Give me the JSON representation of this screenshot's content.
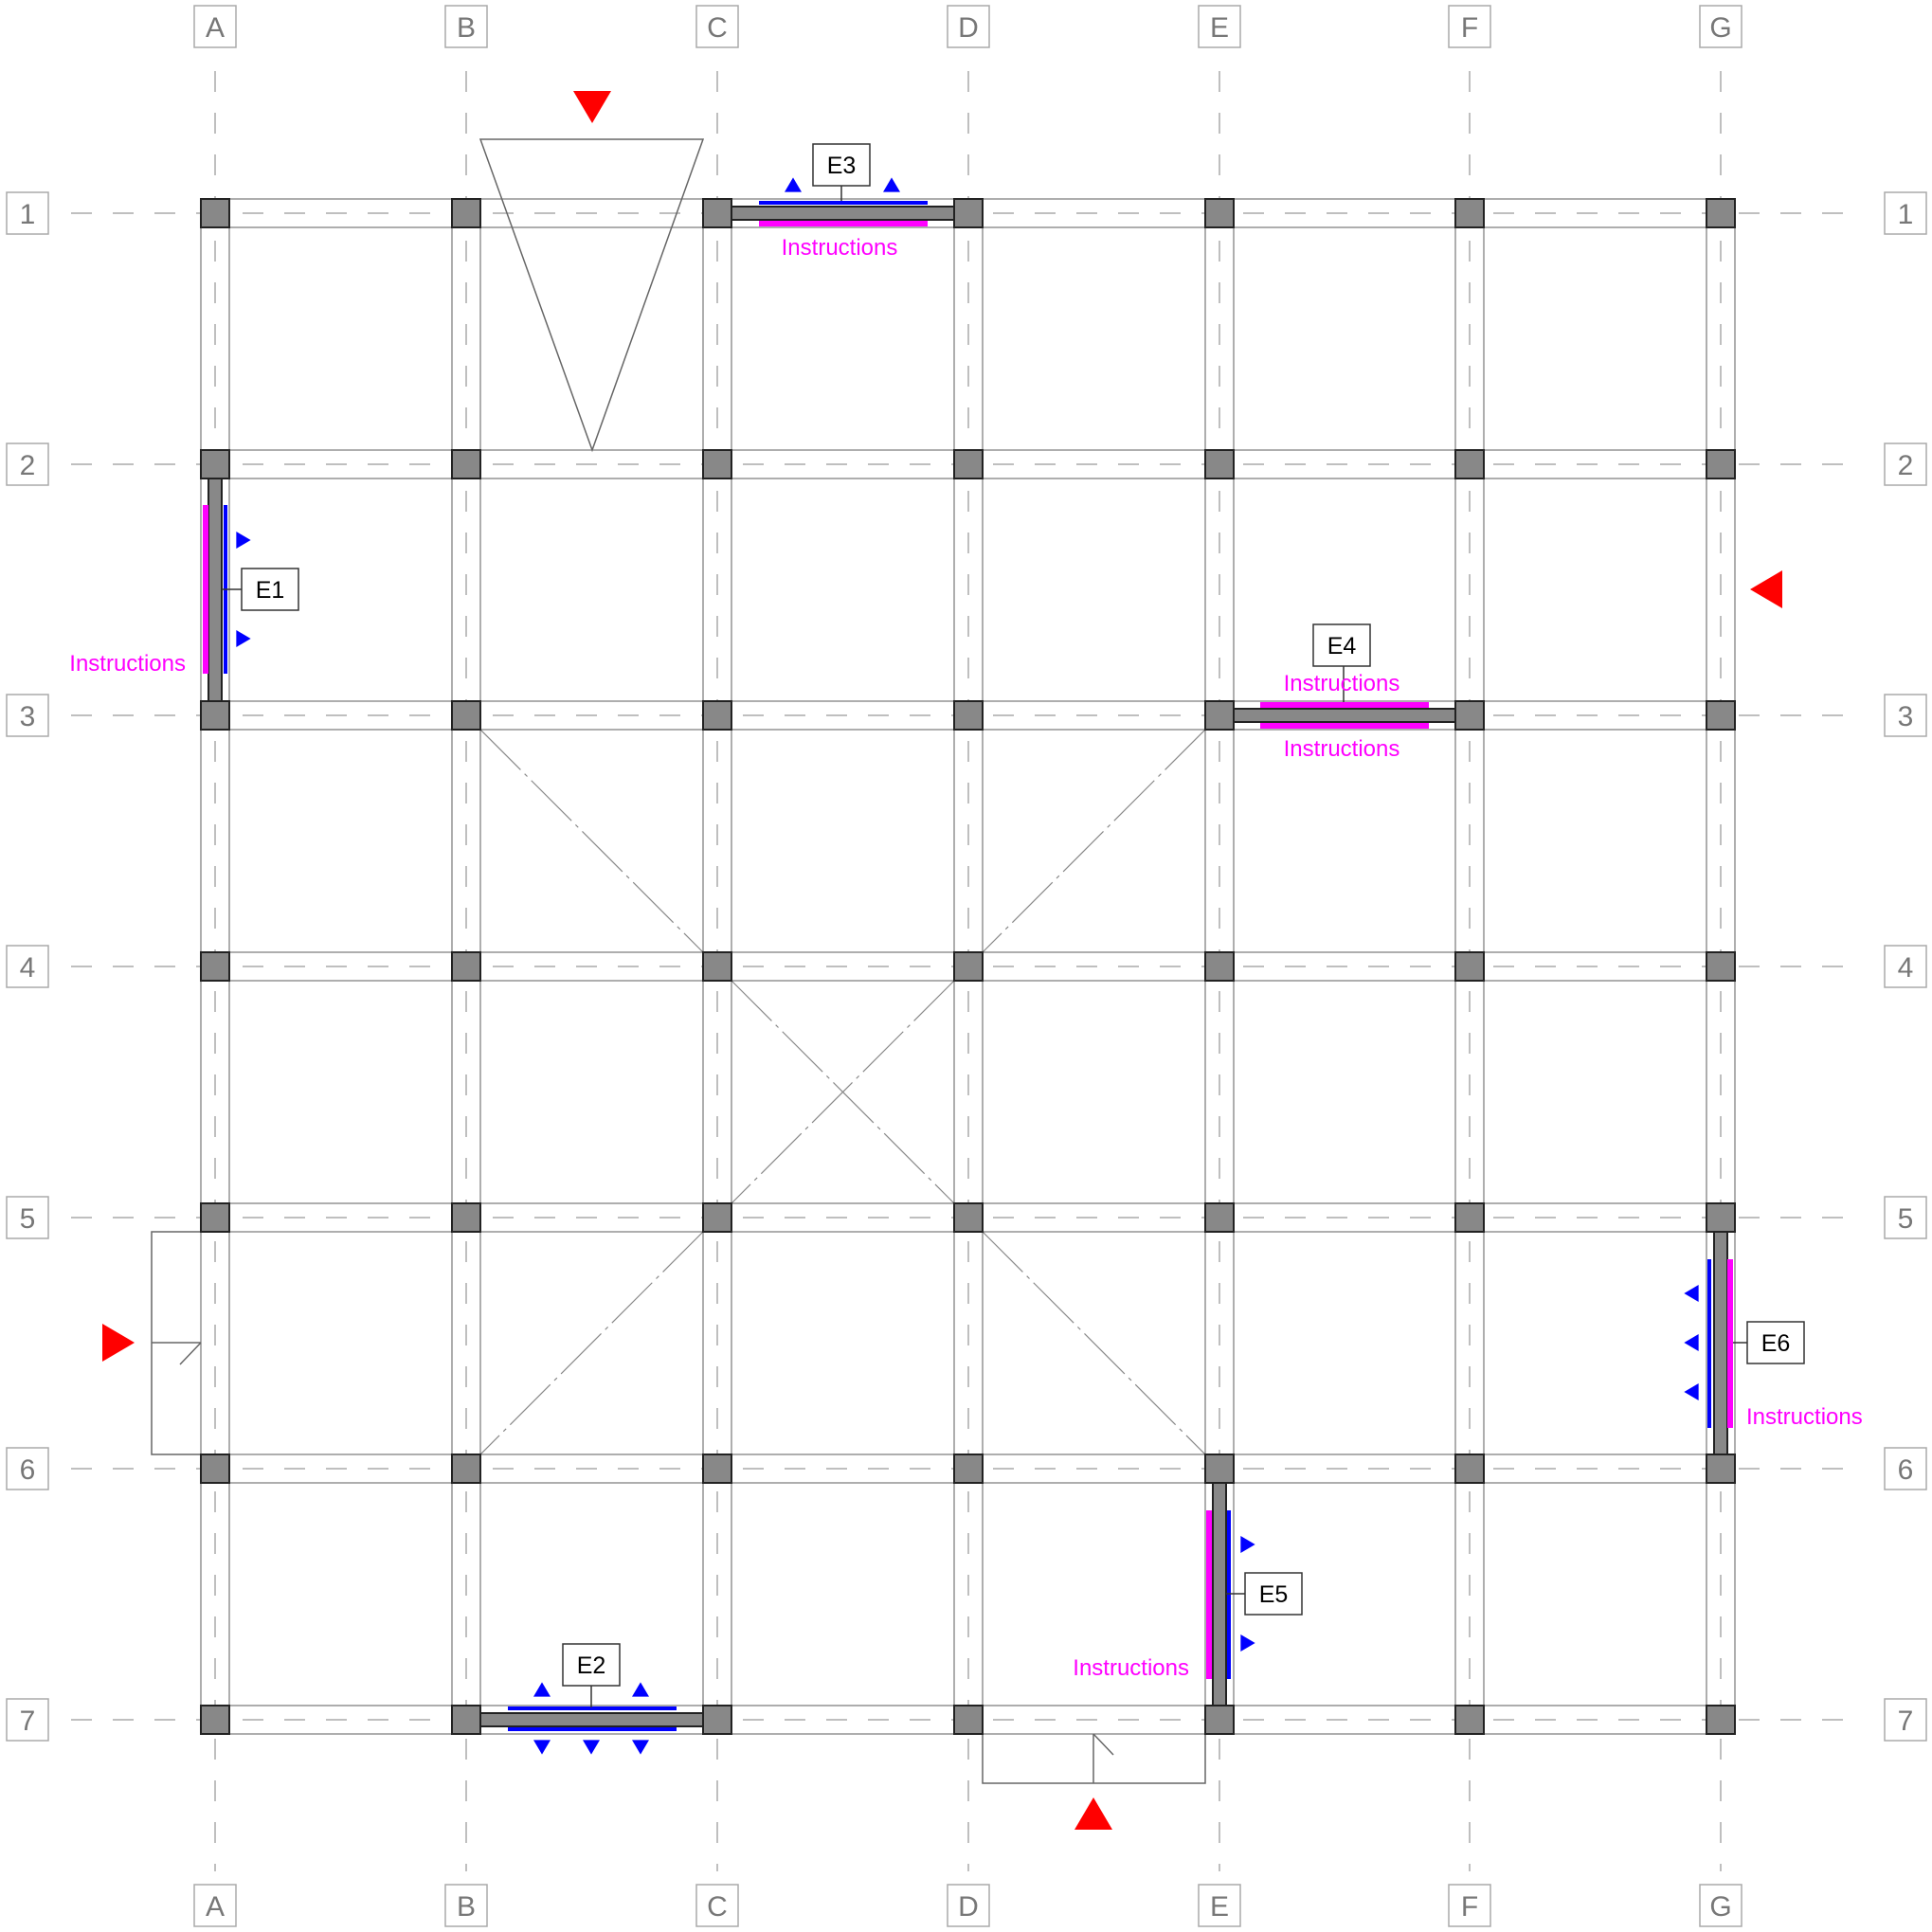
{
  "grid": {
    "columns": [
      "A",
      "B",
      "C",
      "D",
      "E",
      "F",
      "G"
    ],
    "rows": [
      "1",
      "2",
      "3",
      "4",
      "5",
      "6",
      "7"
    ]
  },
  "elevations": [
    {
      "id": "E1",
      "label": "E1",
      "instructions": [
        "Instructions"
      ]
    },
    {
      "id": "E2",
      "label": "E2",
      "instructions": []
    },
    {
      "id": "E3",
      "label": "E3",
      "instructions": [
        "Instructions"
      ]
    },
    {
      "id": "E4",
      "label": "E4",
      "instructions": [
        "Instructions",
        "Instructions"
      ]
    },
    {
      "id": "E5",
      "label": "E5",
      "instructions": [
        "Instructions"
      ]
    },
    {
      "id": "E6",
      "label": "E6",
      "instructions": [
        "Instructions"
      ]
    }
  ],
  "colors": {
    "section_marker": "#ff0000",
    "view_arrow": "#0000ff",
    "instruction": "#ff00ff",
    "column_fill": "#888888"
  }
}
